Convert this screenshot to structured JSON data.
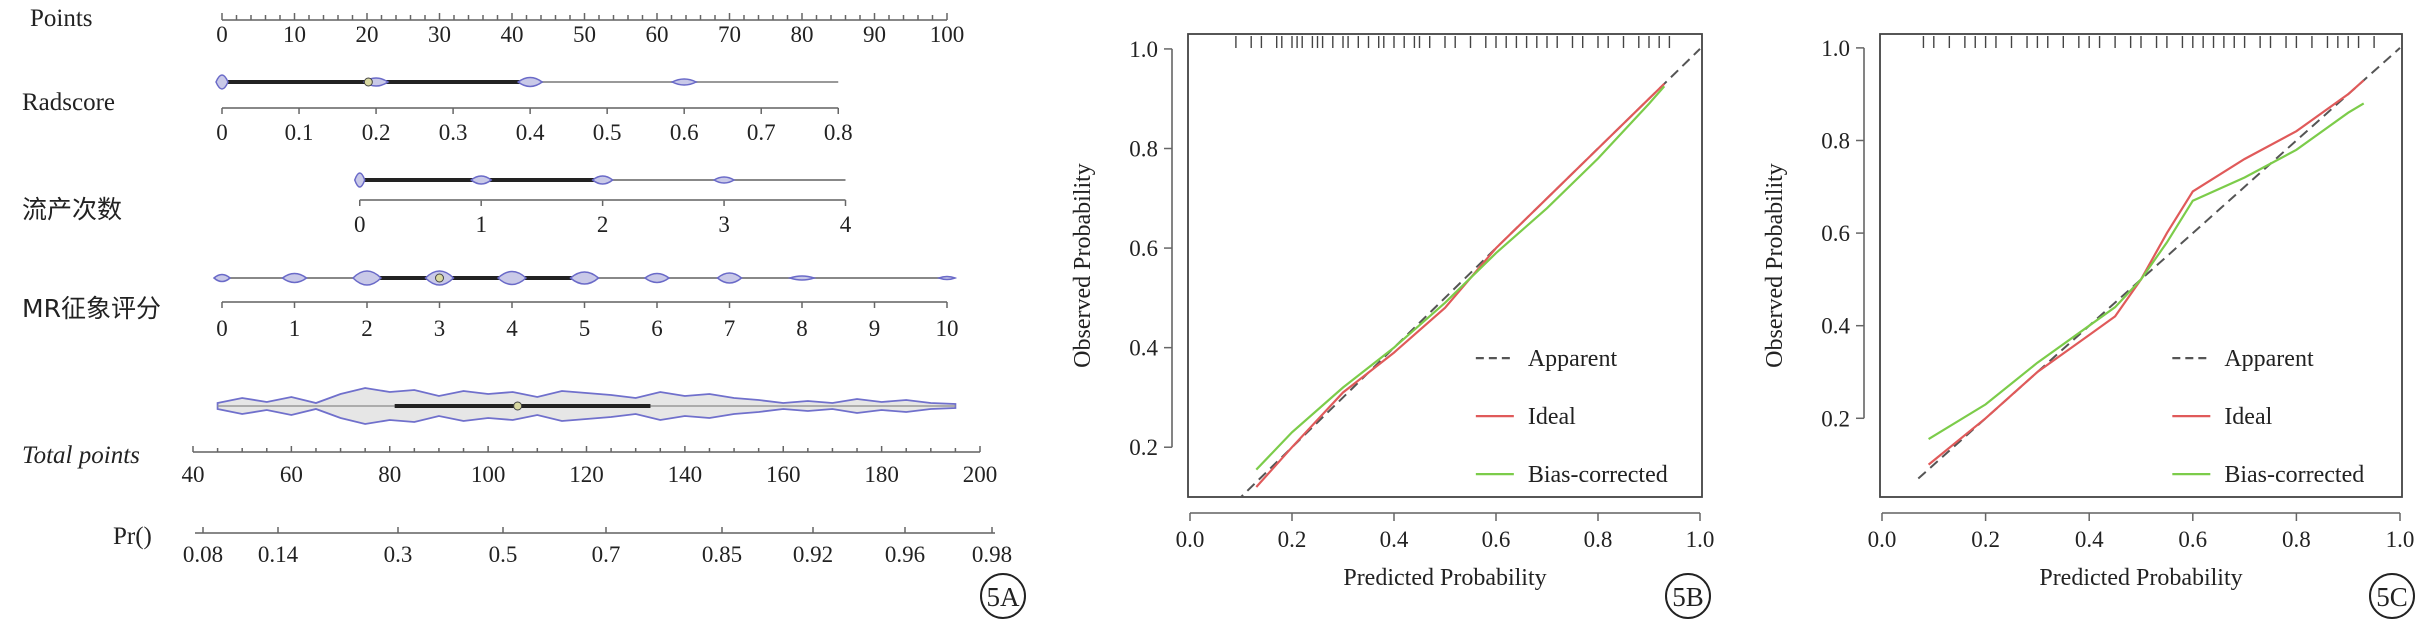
{
  "nomogram": {
    "panel_label": "5A",
    "rows": [
      {
        "key": "points",
        "label": "Points",
        "ticks": [
          "0",
          "10",
          "20",
          "30",
          "40",
          "50",
          "60",
          "70",
          "80",
          "90",
          "100"
        ],
        "tick_values": [
          0,
          10,
          20,
          30,
          40,
          50,
          60,
          70,
          80,
          90,
          100
        ],
        "range": [
          0,
          100
        ]
      },
      {
        "key": "radscore",
        "label": "Radscore",
        "ticks": [
          "0",
          "0.1",
          "0.2",
          "0.3",
          "0.4",
          "0.5",
          "0.6",
          "0.7",
          "0.8"
        ],
        "tick_values": [
          0,
          0.1,
          0.2,
          0.3,
          0.4,
          0.5,
          0.6,
          0.7,
          0.8
        ],
        "range": [
          0,
          0.8
        ],
        "points_span": [
          0,
          85
        ]
      },
      {
        "key": "abortion",
        "label": "流产次数",
        "ticks": [
          "0",
          "1",
          "2",
          "3",
          "4"
        ],
        "tick_values": [
          0,
          1,
          2,
          3,
          4
        ],
        "range": [
          0,
          4
        ],
        "points_span": [
          19,
          86
        ]
      },
      {
        "key": "mr",
        "label": "MR征象评分",
        "ticks": [
          "0",
          "1",
          "2",
          "3",
          "4",
          "5",
          "6",
          "7",
          "8",
          "9",
          "10"
        ],
        "tick_values": [
          0,
          1,
          2,
          3,
          4,
          5,
          6,
          7,
          8,
          9,
          10
        ],
        "range": [
          0,
          10
        ],
        "points_span": [
          0,
          100
        ]
      },
      {
        "key": "total",
        "label": "Total points",
        "ticks": [
          "40",
          "60",
          "80",
          "100",
          "120",
          "140",
          "160",
          "180",
          "200"
        ],
        "tick_values": [
          40,
          60,
          80,
          100,
          120,
          140,
          160,
          180,
          200
        ],
        "range": [
          40,
          200
        ]
      },
      {
        "key": "pr",
        "label": "Pr()",
        "ticks": [
          "0.08",
          "0.14",
          "0.3",
          "0.5",
          "0.7",
          "0.85",
          "0.92",
          "0.96",
          "0.98"
        ],
        "tick_values": [
          0.08,
          0.14,
          0.3,
          0.5,
          0.7,
          0.85,
          0.92,
          0.96,
          0.98
        ]
      }
    ]
  },
  "chart_data": [
    {
      "type": "line",
      "panel_label": "5B",
      "xlabel": "Predicted Probability",
      "ylabel": "Observed Probability",
      "xlim": [
        0,
        1.0
      ],
      "ylim": [
        0.1,
        1.03
      ],
      "x_ticks": [
        "0.0",
        "0.2",
        "0.4",
        "0.6",
        "0.8",
        "1.0"
      ],
      "y_ticks": [
        "0.2",
        "0.4",
        "0.6",
        "0.8",
        "1.0"
      ],
      "legend": [
        "Apparent",
        "Ideal",
        "Bias-corrected"
      ],
      "legend_position": "bottom-right",
      "series": [
        {
          "name": "Apparent",
          "color": "#555555",
          "dash": true,
          "x": [
            0.09,
            1.0
          ],
          "y": [
            0.09,
            1.0
          ]
        },
        {
          "name": "Ideal",
          "color": "#e05a5a",
          "x": [
            0.13,
            0.2,
            0.3,
            0.4,
            0.5,
            0.6,
            0.7,
            0.8,
            0.9,
            0.93
          ],
          "y": [
            0.12,
            0.2,
            0.31,
            0.39,
            0.48,
            0.6,
            0.7,
            0.8,
            0.9,
            0.93
          ]
        },
        {
          "name": "Bias-corrected",
          "color": "#7ccc4a",
          "x": [
            0.13,
            0.2,
            0.3,
            0.4,
            0.5,
            0.6,
            0.7,
            0.8,
            0.9,
            0.93
          ],
          "y": [
            0.155,
            0.23,
            0.32,
            0.4,
            0.49,
            0.59,
            0.68,
            0.78,
            0.89,
            0.925
          ]
        }
      ],
      "rug_x": [
        0.09,
        0.12,
        0.14,
        0.17,
        0.18,
        0.2,
        0.21,
        0.22,
        0.24,
        0.25,
        0.26,
        0.28,
        0.3,
        0.31,
        0.33,
        0.35,
        0.37,
        0.38,
        0.4,
        0.42,
        0.44,
        0.45,
        0.47,
        0.5,
        0.52,
        0.55,
        0.58,
        0.6,
        0.62,
        0.64,
        0.66,
        0.68,
        0.7,
        0.72,
        0.75,
        0.77,
        0.8,
        0.82,
        0.85,
        0.88,
        0.9,
        0.92,
        0.94
      ]
    },
    {
      "type": "line",
      "panel_label": "5C",
      "xlabel": "Predicted Probability",
      "ylabel": "Observed Probability",
      "xlim": [
        0,
        1.0
      ],
      "ylim": [
        0.03,
        1.03
      ],
      "x_ticks": [
        "0.0",
        "0.2",
        "0.4",
        "0.6",
        "0.8",
        "1.0"
      ],
      "y_ticks": [
        "0.2",
        "0.4",
        "0.6",
        "0.8",
        "1.0"
      ],
      "legend": [
        "Apparent",
        "Ideal",
        "Bias-corrected"
      ],
      "legend_position": "bottom-right",
      "series": [
        {
          "name": "Apparent",
          "color": "#555555",
          "dash": true,
          "x": [
            0.07,
            1.0
          ],
          "y": [
            0.07,
            1.0
          ]
        },
        {
          "name": "Ideal",
          "color": "#e05a5a",
          "x": [
            0.09,
            0.2,
            0.3,
            0.4,
            0.45,
            0.5,
            0.55,
            0.6,
            0.7,
            0.8,
            0.9,
            0.93
          ],
          "y": [
            0.1,
            0.2,
            0.3,
            0.38,
            0.42,
            0.5,
            0.6,
            0.69,
            0.76,
            0.82,
            0.9,
            0.93
          ]
        },
        {
          "name": "Bias-corrected",
          "color": "#7ccc4a",
          "x": [
            0.09,
            0.2,
            0.3,
            0.4,
            0.45,
            0.5,
            0.55,
            0.6,
            0.7,
            0.8,
            0.9,
            0.93
          ],
          "y": [
            0.155,
            0.23,
            0.32,
            0.4,
            0.44,
            0.5,
            0.58,
            0.67,
            0.72,
            0.78,
            0.86,
            0.88
          ]
        }
      ],
      "rug_x": [
        0.08,
        0.1,
        0.13,
        0.16,
        0.18,
        0.2,
        0.22,
        0.25,
        0.28,
        0.3,
        0.32,
        0.35,
        0.38,
        0.4,
        0.42,
        0.45,
        0.48,
        0.5,
        0.53,
        0.55,
        0.58,
        0.6,
        0.62,
        0.64,
        0.66,
        0.68,
        0.7,
        0.73,
        0.75,
        0.78,
        0.8,
        0.83,
        0.86,
        0.88,
        0.9,
        0.92,
        0.95
      ]
    }
  ]
}
